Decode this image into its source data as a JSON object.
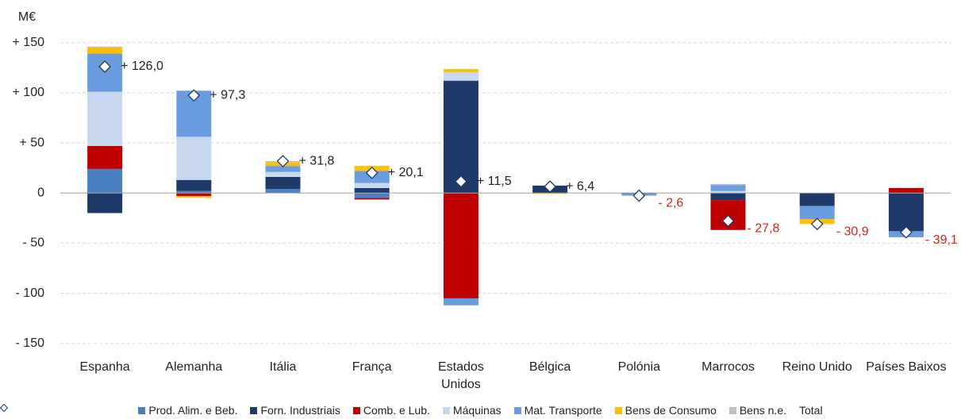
{
  "chart_data": {
    "type": "stacked_bar",
    "y_label": "M€",
    "categories": [
      "Espanha",
      "Alemanha",
      "Itália",
      "França",
      "Estados Unidos",
      "Bélgica",
      "Polónia",
      "Marrocos",
      "Reino Unido",
      "Países Baixos"
    ],
    "series": [
      {
        "name": "Prod. Alim. e Beb.",
        "color": "#4a7fc1",
        "values": [
          24,
          2,
          4,
          -5,
          0,
          0,
          0,
          0,
          0,
          0
        ]
      },
      {
        "name": "Forn. Industriais",
        "color": "#1f3a68",
        "values": [
          -20,
          11,
          12,
          5,
          112,
          7.4,
          -0.8,
          -7,
          -13,
          -38.1
        ]
      },
      {
        "name": "Comb. e Lub.",
        "color": "#c00000",
        "values": [
          23,
          -3,
          0,
          -1.4,
          -105,
          0,
          0,
          -29.8,
          0,
          5
        ]
      },
      {
        "name": "Máquinas",
        "color": "#c6d7ee",
        "values": [
          54,
          43,
          5,
          5,
          8.5,
          0,
          0,
          2,
          0,
          0
        ]
      },
      {
        "name": "Mat. Transporte",
        "color": "#6a9de0",
        "values": [
          38,
          46,
          6,
          12,
          -7,
          0,
          -1.8,
          6,
          -13,
          -6
        ]
      },
      {
        "name": "Bens de Consumo",
        "color": "#ffc000",
        "values": [
          6,
          -1.7,
          3.8,
          5,
          3,
          -1,
          0,
          0,
          -4.9,
          0
        ]
      },
      {
        "name": "Bens n.e.",
        "color": "#bfbfbf",
        "values": [
          1,
          0,
          1,
          -0.5,
          0,
          0,
          0,
          1,
          0,
          0
        ]
      }
    ],
    "totals": {
      "name": "Total",
      "values": [
        126.0,
        97.3,
        31.8,
        20.1,
        11.5,
        6.4,
        -2.6,
        -27.8,
        -30.9,
        -39.1
      ],
      "value_labels": [
        "+ 126,0",
        "+ 97,3",
        "+ 31,8",
        "+ 20,1",
        "+ 11,5",
        "+ 6,4",
        "- 2,6",
        "- 27,8",
        "- 30,9",
        "- 39,1"
      ]
    },
    "ylim": [
      -162,
      160
    ],
    "yticks": [
      {
        "value": 150,
        "label": "+ 150"
      },
      {
        "value": 100,
        "label": "+ 100"
      },
      {
        "value": 50,
        "label": "+ 50"
      },
      0,
      {
        "value": -50,
        "label": "- 50"
      },
      {
        "value": -100,
        "label": "- 100"
      },
      {
        "value": -150,
        "label": "- 150"
      }
    ],
    "grid": true,
    "legend": "bottom"
  }
}
